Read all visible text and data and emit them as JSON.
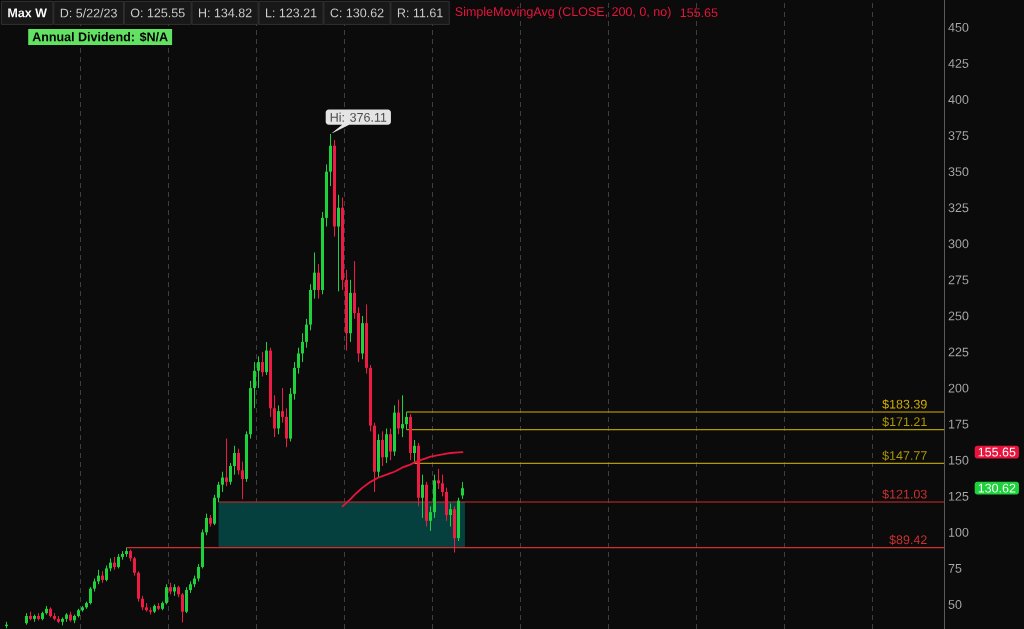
{
  "chart_data": {
    "type": "candlestick",
    "title": "Max W",
    "categories": [
      null,
      null,
      null,
      null,
      null,
      null,
      null,
      null,
      null,
      null,
      null,
      null,
      null,
      null,
      null,
      null,
      null,
      null,
      null,
      null,
      null,
      null,
      null,
      null,
      null,
      null,
      null,
      null,
      null,
      null,
      null,
      null,
      null,
      null,
      null,
      null,
      null,
      null,
      null,
      null,
      null,
      null,
      null,
      null,
      null,
      null,
      null,
      null,
      null,
      null,
      null,
      null,
      null,
      null,
      null,
      null,
      null,
      null,
      null,
      null,
      null,
      null,
      null,
      null,
      null,
      null,
      null,
      null,
      null,
      null,
      null,
      null,
      null,
      null,
      null,
      null,
      null,
      null,
      null,
      null,
      null,
      null,
      null,
      null,
      null,
      null,
      null,
      null,
      null,
      null,
      null,
      null,
      null,
      null,
      null,
      null,
      null,
      null,
      null,
      null,
      null,
      null,
      null,
      null,
      null,
      null,
      null,
      null,
      null,
      null,
      null,
      null,
      null,
      null,
      null,
      null,
      null,
      null,
      null,
      null,
      null,
      null,
      null,
      null,
      null,
      null,
      null,
      null,
      null,
      null,
      null,
      null,
      null,
      null,
      null,
      null,
      null,
      null,
      null,
      null,
      null,
      null,
      null,
      null,
      null,
      null,
      null,
      null,
      null,
      null,
      null,
      null,
      null,
      null,
      null,
      null,
      null,
      null,
      null,
      null,
      null,
      null,
      null,
      null,
      null,
      null,
      null,
      null,
      null,
      null,
      null,
      null,
      null,
      null,
      null,
      null,
      null,
      null,
      null,
      null,
      null,
      null,
      null,
      null,
      null,
      null,
      null,
      null,
      null,
      null,
      null,
      null,
      null,
      null,
      null,
      null,
      null,
      null,
      null,
      null,
      null,
      null,
      null,
      null,
      null,
      null,
      null,
      null,
      null,
      null,
      null,
      null,
      null,
      null,
      null,
      null,
      null,
      null,
      null,
      null,
      null,
      null,
      null,
      null,
      null,
      null,
      null,
      null,
      null,
      null,
      null,
      null,
      null,
      null,
      null,
      null
    ],
    "ohlc": [
      null,
      [
        35,
        38,
        33.5,
        36
      ],
      null,
      null,
      null,
      null,
      [
        37,
        44,
        36,
        42
      ],
      [
        42,
        45,
        39,
        40
      ],
      [
        40,
        43,
        38,
        42
      ],
      [
        42,
        44,
        39,
        40
      ],
      [
        40,
        45,
        39,
        44
      ],
      [
        44,
        49,
        43,
        47
      ],
      [
        47,
        48,
        41,
        42
      ],
      [
        42,
        44,
        39,
        40
      ],
      [
        40,
        42,
        37,
        38
      ],
      [
        38,
        41,
        35.5,
        40
      ],
      [
        40,
        44,
        38,
        43
      ],
      [
        43,
        45,
        38,
        39
      ],
      [
        39,
        43,
        37,
        42
      ],
      [
        42,
        47,
        41,
        46
      ],
      [
        46,
        49,
        45,
        48
      ],
      [
        48,
        52,
        47,
        51
      ],
      [
        51,
        62,
        50,
        61
      ],
      [
        61,
        68,
        59,
        66
      ],
      [
        66,
        74,
        64,
        70
      ],
      [
        70,
        73,
        65,
        67
      ],
      [
        67,
        77,
        66,
        75
      ],
      [
        75,
        82,
        73,
        79
      ],
      [
        79,
        83,
        74,
        76
      ],
      [
        76,
        85,
        75,
        83
      ],
      [
        83,
        87,
        81,
        85
      ],
      [
        85,
        89.42,
        83,
        87
      ],
      [
        87,
        88,
        80,
        82
      ],
      [
        82,
        83,
        70,
        72
      ],
      [
        72,
        73,
        52,
        54
      ],
      [
        54,
        56,
        46,
        48
      ],
      [
        48,
        51,
        45,
        46
      ],
      [
        46,
        48,
        43,
        45
      ],
      [
        45,
        50,
        44,
        49
      ],
      [
        49,
        51,
        46,
        47
      ],
      [
        47,
        52,
        46,
        51
      ],
      [
        51,
        64,
        50,
        62
      ],
      [
        62,
        65,
        57,
        59
      ],
      [
        59,
        64,
        56,
        62
      ],
      [
        62,
        63,
        55,
        57
      ],
      [
        57,
        58,
        37.5,
        45
      ],
      [
        45,
        62,
        44,
        60
      ],
      [
        60,
        66,
        58,
        64
      ],
      [
        64,
        70,
        62,
        68
      ],
      [
        68,
        78,
        66,
        76
      ],
      [
        76,
        102,
        75,
        100
      ],
      [
        100,
        113,
        98,
        110
      ],
      [
        110,
        112,
        104,
        106
      ],
      [
        106,
        126,
        105,
        124
      ],
      [
        124,
        135,
        121.03,
        133
      ],
      [
        133,
        142,
        128,
        138
      ],
      [
        138,
        165,
        132,
        135
      ],
      [
        135,
        148,
        133,
        146
      ],
      [
        146,
        160,
        140,
        155
      ],
      [
        155,
        158,
        140,
        143
      ],
      [
        143,
        149,
        123,
        137
      ],
      [
        137,
        170,
        135,
        168
      ],
      [
        168,
        205,
        165,
        200
      ],
      [
        200,
        218,
        186,
        212
      ],
      [
        212,
        222,
        200,
        218
      ],
      [
        218,
        225,
        208,
        211
      ],
      [
        211,
        232,
        209,
        226
      ],
      [
        226,
        228,
        180,
        186
      ],
      [
        186,
        195,
        166,
        172
      ],
      [
        172,
        188,
        168,
        184
      ],
      [
        184,
        200,
        176,
        180
      ],
      [
        180,
        186,
        159,
        165
      ],
      [
        165,
        200,
        163,
        196
      ],
      [
        196,
        218,
        192,
        214
      ],
      [
        214,
        228,
        210,
        224
      ],
      [
        224,
        238,
        218,
        232
      ],
      [
        232,
        248,
        228,
        244
      ],
      [
        244,
        272,
        240,
        268
      ],
      [
        268,
        294,
        262,
        280
      ],
      [
        280,
        286,
        262,
        268
      ],
      [
        268,
        322,
        265,
        318
      ],
      [
        318,
        355,
        312,
        350
      ],
      [
        350,
        376.11,
        340,
        368
      ],
      [
        368,
        372,
        305,
        312
      ],
      [
        312,
        334,
        267,
        325
      ],
      [
        325,
        332,
        268,
        275
      ],
      [
        275,
        282,
        226,
        238
      ],
      [
        238,
        275,
        232,
        266
      ],
      [
        266,
        288,
        248,
        252
      ],
      [
        252,
        256,
        218,
        224
      ],
      [
        224,
        250,
        220,
        245
      ],
      [
        245,
        258,
        210,
        214
      ],
      [
        214,
        216,
        170,
        174
      ],
      [
        174,
        176,
        128,
        142
      ],
      [
        142,
        168,
        138,
        164
      ],
      [
        164,
        170,
        146,
        152
      ],
      [
        152,
        172,
        148,
        168
      ],
      [
        168,
        172,
        150,
        156
      ],
      [
        156,
        188,
        153,
        183
      ],
      [
        183,
        192,
        168,
        172
      ],
      [
        172,
        195,
        166,
        175
      ],
      [
        175,
        183.39,
        171.21,
        180
      ],
      [
        180,
        182,
        150,
        155
      ],
      [
        155,
        164,
        147.77,
        160
      ],
      [
        160,
        162,
        118,
        124
      ],
      [
        124,
        140,
        110,
        133
      ],
      [
        133,
        135,
        104,
        108
      ],
      [
        108,
        118,
        101,
        114
      ],
      [
        114,
        140,
        110,
        136
      ],
      [
        136,
        144,
        130,
        134
      ],
      [
        134,
        140,
        125,
        128
      ],
      [
        128,
        131,
        108,
        112
      ],
      [
        112,
        120,
        104,
        116
      ],
      [
        116,
        118,
        86,
        96
      ],
      [
        96,
        124,
        94,
        122
      ],
      [
        125.55,
        134.82,
        123.21,
        130.62
      ],
      null,
      null,
      null,
      null,
      null,
      null,
      null,
      null,
      null,
      null,
      null,
      null,
      null,
      null,
      null,
      null,
      null,
      null,
      null,
      null,
      null,
      null,
      null,
      null,
      null,
      null,
      null,
      null,
      null,
      null,
      null,
      null,
      null,
      null,
      null,
      null,
      null,
      null,
      null,
      null,
      null,
      null,
      null,
      null,
      null,
      null,
      null,
      null,
      null,
      null,
      null,
      null,
      null,
      null,
      null,
      null,
      null,
      null,
      null,
      null,
      null,
      null,
      null,
      null,
      null,
      null,
      null,
      null,
      null,
      null,
      null,
      null,
      null,
      null,
      null,
      null,
      null,
      null,
      null,
      null,
      null,
      null,
      null,
      null,
      null,
      null,
      null,
      null,
      null,
      null,
      null,
      null,
      null,
      null,
      null,
      null,
      null,
      null,
      null,
      null,
      null,
      null,
      null,
      null,
      null,
      null,
      null,
      null,
      null,
      null,
      null,
      null,
      null,
      null,
      null,
      null,
      null,
      null,
      null,
      null
    ],
    "colors": [
      null,
      "#1ed23c",
      null,
      null,
      null,
      null,
      "#1ed23c",
      "#ee1c44",
      "#1ed23c",
      "#ee1c44",
      "#1ed23c",
      "#1ed23c",
      "#ee1c44",
      "#ee1c44",
      "#ee1c44",
      "#1ed23c",
      "#1ed23c",
      "#ee1c44",
      "#1ed23c",
      "#1ed23c",
      "#1ed23c",
      "#1ed23c",
      "#1ed23c",
      "#1ed23c",
      "#1ed23c",
      "#ee1c44",
      "#1ed23c",
      "#1ed23c",
      "#ee1c44",
      "#1ed23c",
      "#1ed23c",
      "#1ed23c",
      "#ee1c44",
      "#ee1c44",
      "#ee1c44",
      "#ee1c44",
      "#ee1c44",
      "#ee1c44",
      "#1ed23c",
      "#ee1c44",
      "#1ed23c",
      "#1ed23c",
      "#ee1c44",
      "#1ed23c",
      "#ee1c44",
      "#ee1c44",
      "#1ed23c",
      "#1ed23c",
      "#1ed23c",
      "#1ed23c",
      "#1ed23c",
      "#1ed23c",
      "#ee1c44",
      "#1ed23c",
      "#1ed23c",
      "#1ed23c",
      "#ee1c44",
      "#1ed23c",
      "#1ed23c",
      "#ee1c44",
      "#ee1c44",
      "#1ed23c",
      "#1ed23c",
      "#1ed23c",
      "#1ed23c",
      "#ee1c44",
      "#1ed23c",
      "#ee1c44",
      "#ee1c44",
      "#1ed23c",
      "#ee1c44",
      "#ee1c44",
      "#1ed23c",
      "#1ed23c",
      "#1ed23c",
      "#1ed23c",
      "#1ed23c",
      "#1ed23c",
      "#1ed23c",
      "#ee1c44",
      "#1ed23c",
      "#1ed23c",
      "#1ed23c",
      "#ee1c44",
      "#1ed23c",
      "#ee1c44",
      "#ee1c44",
      "#1ed23c",
      "#ee1c44",
      "#ee1c44",
      "#1ed23c",
      "#ee1c44",
      "#ee1c44",
      "#ee1c44",
      "#1ed23c",
      "#ee1c44",
      "#1ed23c",
      "#ee1c44",
      "#1ed23c",
      "#ee1c44",
      "#1ed23c",
      "#1ed23c",
      "#ee1c44",
      "#1ed23c",
      "#ee1c44",
      "#1ed23c",
      "#ee1c44",
      "#1ed23c",
      "#1ed23c",
      "#ee1c44",
      "#ee1c44",
      "#ee1c44",
      "#1ed23c",
      "#ee1c44",
      "#1ed23c",
      "#1ed23c",
      null,
      null,
      null,
      null,
      null,
      null,
      null,
      null,
      null,
      null,
      null,
      null,
      null,
      null,
      null,
      null,
      null,
      null,
      null,
      null,
      null,
      null,
      null,
      null,
      null,
      null,
      null,
      null,
      null,
      null,
      null,
      null,
      null,
      null,
      null,
      null,
      null,
      null,
      null,
      null,
      null,
      null,
      null,
      null,
      null,
      null,
      null,
      null,
      null,
      null,
      null,
      null,
      null,
      null,
      null,
      null,
      null,
      null,
      null,
      null,
      null,
      null,
      null,
      null,
      null,
      null,
      null,
      null,
      null,
      null,
      null,
      null,
      null,
      null,
      null,
      null,
      null,
      null,
      null,
      null,
      null,
      null,
      null,
      null,
      null,
      null,
      null,
      null,
      null,
      null,
      null,
      null,
      null,
      null,
      null,
      null,
      null,
      null,
      null,
      null,
      null,
      null,
      null,
      null,
      null,
      null,
      null,
      null,
      null,
      null,
      null,
      null,
      null,
      null,
      null,
      null,
      null,
      null,
      null,
      null
    ],
    "series": [
      {
        "type": "line",
        "name": "SimpleMovingAvg (CLOSE, 200, 0, no)",
        "color": "#e8143c",
        "values": [
          null,
          null,
          null,
          null,
          null,
          null,
          null,
          null,
          null,
          null,
          null,
          null,
          null,
          null,
          null,
          null,
          null,
          null,
          null,
          null,
          null,
          null,
          null,
          null,
          null,
          null,
          null,
          null,
          null,
          null,
          null,
          null,
          null,
          null,
          null,
          null,
          null,
          null,
          null,
          null,
          null,
          null,
          null,
          null,
          null,
          null,
          null,
          null,
          null,
          null,
          null,
          null,
          null,
          null,
          null,
          null,
          null,
          null,
          null,
          null,
          null,
          null,
          null,
          null,
          null,
          null,
          null,
          null,
          null,
          null,
          null,
          null,
          null,
          null,
          null,
          null,
          null,
          null,
          null,
          null,
          null,
          null,
          null,
          null,
          null,
          118,
          120.5,
          123,
          126,
          128.5,
          131,
          133,
          135,
          136.5,
          138,
          139,
          140,
          141,
          142,
          143.5,
          145,
          146,
          147,
          148.5,
          149.5,
          150.5,
          151.5,
          152.5,
          153,
          153.5,
          154,
          154.5,
          155,
          155.2,
          155.4,
          155.65,
          null,
          null,
          null,
          null,
          null,
          null,
          null,
          null,
          null,
          null,
          null,
          null,
          null,
          null,
          null,
          null,
          null,
          null,
          null,
          null,
          null,
          null,
          null,
          null,
          null,
          null,
          null,
          null,
          null,
          null,
          null,
          null,
          null,
          null,
          null,
          null,
          null,
          null,
          null,
          null,
          null,
          null,
          null,
          null,
          null,
          null,
          null,
          null,
          null,
          null,
          null,
          null,
          null,
          null,
          null,
          null,
          null,
          null,
          null,
          null,
          null,
          null,
          null,
          null,
          null,
          null,
          null,
          null,
          null,
          null,
          null,
          null,
          null,
          null,
          null,
          null,
          null,
          null,
          null,
          null,
          null,
          null,
          null,
          null,
          null,
          null,
          null,
          null,
          null,
          null,
          null,
          null,
          null,
          null,
          null,
          null,
          null,
          null,
          null,
          null,
          null,
          null,
          null,
          null,
          null,
          null,
          null,
          null,
          null,
          null,
          null,
          null,
          null,
          null,
          null,
          null,
          null,
          null,
          null,
          null
        ]
      }
    ],
    "ylim": [
      33,
      469
    ],
    "yticks": [
      50,
      75,
      100,
      125,
      150,
      175,
      200,
      225,
      250,
      275,
      300,
      325,
      350,
      375,
      400,
      425,
      450
    ],
    "tick_labels": "y",
    "grid": "x",
    "ref_lines": [
      {
        "axis": "y",
        "value": 183.39,
        "label": "$183.39",
        "color": "#d4b000"
      },
      {
        "axis": "y",
        "value": 171.21,
        "label": "$171.21",
        "color": "#b09a00"
      },
      {
        "axis": "y",
        "value": 147.77,
        "label": "$147.77",
        "color": "#b09a00"
      },
      {
        "axis": "y",
        "value": 121.03,
        "label": "$121.03",
        "color": "#cc3030"
      },
      {
        "axis": "y",
        "value": 89.42,
        "label": "$89.42",
        "color": "#cc3030"
      }
    ],
    "bands": [
      {
        "axis": "y",
        "from": 89.42,
        "to": 121.03,
        "color": "#05403f"
      }
    ],
    "annotations": [
      "D: 5/22/23",
      "O: 125.55",
      "H: 134.82",
      "L: 123.21",
      "C: 130.62",
      "R: 11.61",
      "155.65",
      "Annual Dividend: $N/A",
      "Hi: 376.11",
      "155.65",
      "130.62"
    ]
  }
}
